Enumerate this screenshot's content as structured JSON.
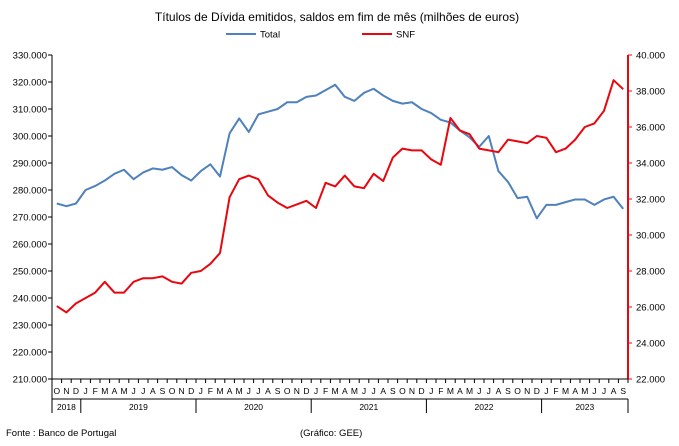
{
  "chart_data": {
    "type": "line",
    "title": "Títulos de Dívida emitidos, saldos em fim de mês  (milhões de euros)",
    "source_note": "Fonte : Banco de Portugal",
    "credit_note": "(Gráfico: GEE)",
    "legend_position": "top-center",
    "grid": false,
    "month_labels": [
      "O",
      "N",
      "D",
      "J",
      "F",
      "M",
      "A",
      "M",
      "J",
      "J",
      "A",
      "S",
      "O",
      "N",
      "D",
      "J",
      "F",
      "M",
      "A",
      "M",
      "J",
      "J",
      "A",
      "S",
      "O",
      "N",
      "D",
      "J",
      "F",
      "M",
      "A",
      "M",
      "J",
      "J",
      "A",
      "S",
      "O",
      "N",
      "D",
      "J",
      "F",
      "M",
      "A",
      "M",
      "J",
      "J",
      "A",
      "S",
      "O",
      "N",
      "D",
      "J",
      "F",
      "M",
      "A",
      "M",
      "J",
      "J",
      "A",
      "S"
    ],
    "year_groups": [
      {
        "label": "2018",
        "start": 0,
        "end": 2
      },
      {
        "label": "2019",
        "start": 3,
        "end": 14
      },
      {
        "label": "2020",
        "start": 15,
        "end": 26
      },
      {
        "label": "2021",
        "start": 27,
        "end": 38
      },
      {
        "label": "2022",
        "start": 39,
        "end": 50
      },
      {
        "label": "2023",
        "start": 51,
        "end": 59
      }
    ],
    "left_axis": {
      "ylim": [
        210000,
        330000
      ],
      "ticks": [
        "210.000",
        "220.000",
        "230.000",
        "240.000",
        "250.000",
        "260.000",
        "270.000",
        "280.000",
        "290.000",
        "300.000",
        "310.000",
        "320.000",
        "330.000"
      ],
      "color": "#000000"
    },
    "right_axis": {
      "ylim": [
        22000,
        40000
      ],
      "ticks": [
        "22.000",
        "24.000",
        "26.000",
        "28.000",
        "30.000",
        "32.000",
        "34.000",
        "36.000",
        "38.000",
        "40.000"
      ],
      "color": "#e8070e"
    },
    "series": [
      {
        "name": "Total",
        "axis": "left",
        "color": "#4f81bd",
        "values": [
          275000,
          274000,
          275000,
          280000,
          281500,
          283500,
          286000,
          287500,
          284000,
          286500,
          288000,
          287500,
          288500,
          285500,
          283500,
          287000,
          289500,
          285000,
          301000,
          306500,
          301500,
          308000,
          309000,
          310000,
          312500,
          312500,
          314500,
          315000,
          317000,
          319000,
          314500,
          313000,
          316000,
          317500,
          315000,
          313000,
          312000,
          312500,
          310000,
          308500,
          306000,
          305000,
          302000,
          299500,
          296000,
          300000,
          287000,
          283000,
          277000,
          277500,
          269500,
          274500,
          274500,
          275500,
          276500,
          276500,
          274500,
          276500,
          277500,
          273000
        ]
      },
      {
        "name": "SNF",
        "axis": "right",
        "color": "#e8070e",
        "values": [
          26050,
          25700,
          26200,
          26500,
          26800,
          27400,
          26800,
          26800,
          27400,
          27600,
          27600,
          27700,
          27400,
          27300,
          27900,
          28000,
          28400,
          29000,
          32100,
          33100,
          33300,
          33100,
          32200,
          31800,
          31500,
          31700,
          31900,
          31500,
          32900,
          32700,
          33300,
          32700,
          32600,
          33400,
          33000,
          34300,
          34800,
          34700,
          34700,
          34200,
          33900,
          36500,
          35800,
          35600,
          34800,
          34700,
          34600,
          35300,
          35200,
          35100,
          35500,
          35400,
          34600,
          34800,
          35300,
          36000,
          36200,
          36900,
          38600,
          38100
        ]
      }
    ]
  }
}
